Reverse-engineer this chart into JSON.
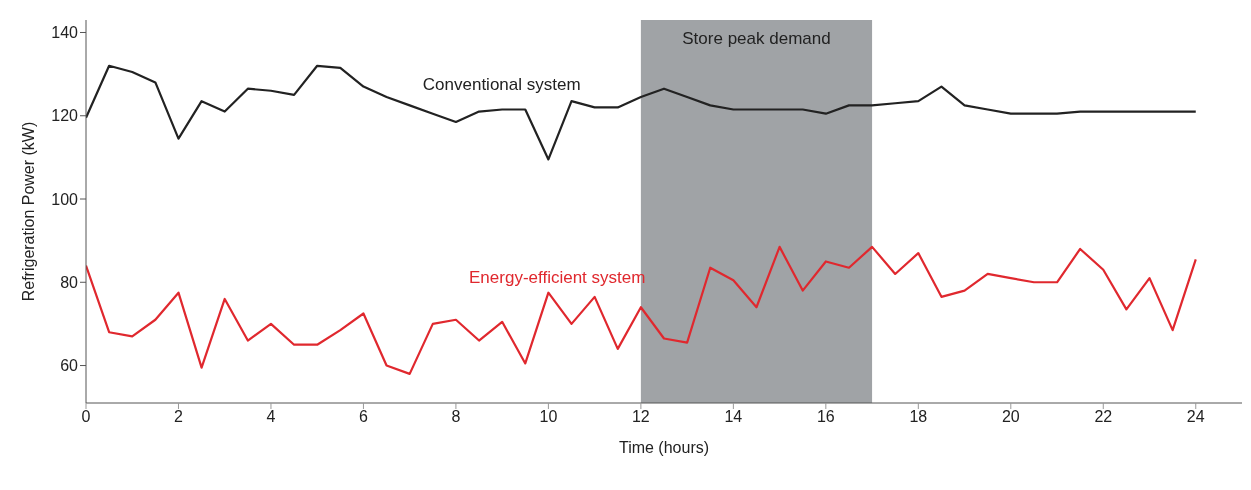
{
  "chart_data": {
    "type": "line",
    "xlabel": "Time (hours)",
    "ylabel": "Refrigeration Power (kW)",
    "xlim": [
      0,
      25
    ],
    "xticks": [
      0,
      2,
      4,
      6,
      8,
      10,
      12,
      14,
      16,
      18,
      20,
      22,
      24
    ],
    "ylim": [
      51,
      143
    ],
    "yticks": [
      60,
      80,
      100,
      120,
      140
    ],
    "grid": false,
    "legend": false,
    "marker": "none",
    "line_style": "solid",
    "bands": [
      {
        "axis": "x",
        "from": 12,
        "to": 17,
        "label": "Store peak demand",
        "color": "#a0a3a6"
      }
    ],
    "series": [
      {
        "name": "Conventional system",
        "color": "#222222",
        "x": [
          0,
          0.5,
          1,
          1.5,
          2,
          2.5,
          3,
          3.5,
          4,
          4.5,
          5,
          5.5,
          6,
          6.5,
          7,
          7.5,
          8,
          8.5,
          9,
          9.5,
          10,
          10.5,
          11,
          11.5,
          12,
          12.5,
          13,
          13.5,
          14,
          15,
          15.5,
          16,
          16.5,
          17,
          17.5,
          18,
          18.5,
          19,
          19.5,
          20,
          21,
          21.5,
          22,
          24
        ],
        "values": [
          119.5,
          132,
          130.5,
          128,
          114.5,
          123.5,
          121,
          126.5,
          126,
          125,
          132,
          131.5,
          127,
          124.5,
          122.5,
          120.5,
          118.5,
          121,
          121.5,
          121.5,
          109.5,
          123.5,
          122,
          122,
          124.5,
          126.5,
          124.5,
          122.5,
          121.5,
          121.5,
          121.5,
          120.5,
          122.5,
          122.5,
          123,
          123.5,
          127,
          122.5,
          121.5,
          120.5,
          120.5,
          121,
          121,
          121
        ]
      },
      {
        "name": "Energy-efficient system",
        "color": "#e0282e",
        "x": [
          0,
          0.5,
          1,
          1.5,
          2,
          2.5,
          3,
          3.5,
          4,
          4.5,
          5,
          5.5,
          6,
          6.5,
          7,
          7.5,
          8,
          8.5,
          9,
          9.5,
          10,
          10.5,
          11,
          11.5,
          12,
          12.5,
          13,
          13.5,
          14,
          14.5,
          15,
          15.5,
          16,
          16.5,
          17,
          17.5,
          18,
          18.5,
          19,
          19.5,
          20,
          20.5,
          21,
          21.5,
          22,
          22.5,
          23,
          23.5,
          24
        ],
        "values": [
          84,
          68,
          67,
          71,
          77.5,
          59.5,
          76,
          66,
          70,
          65,
          65,
          68.5,
          72.5,
          60,
          58,
          70,
          71,
          66,
          70.5,
          60.5,
          77.5,
          70,
          76.5,
          64,
          74,
          66.5,
          65.5,
          83.5,
          80.5,
          74,
          88.5,
          78,
          85,
          83.5,
          88.5,
          82,
          87,
          76.5,
          78,
          82,
          81,
          80,
          80,
          88,
          83,
          73.5,
          81,
          68.5,
          85.5
        ]
      }
    ]
  }
}
